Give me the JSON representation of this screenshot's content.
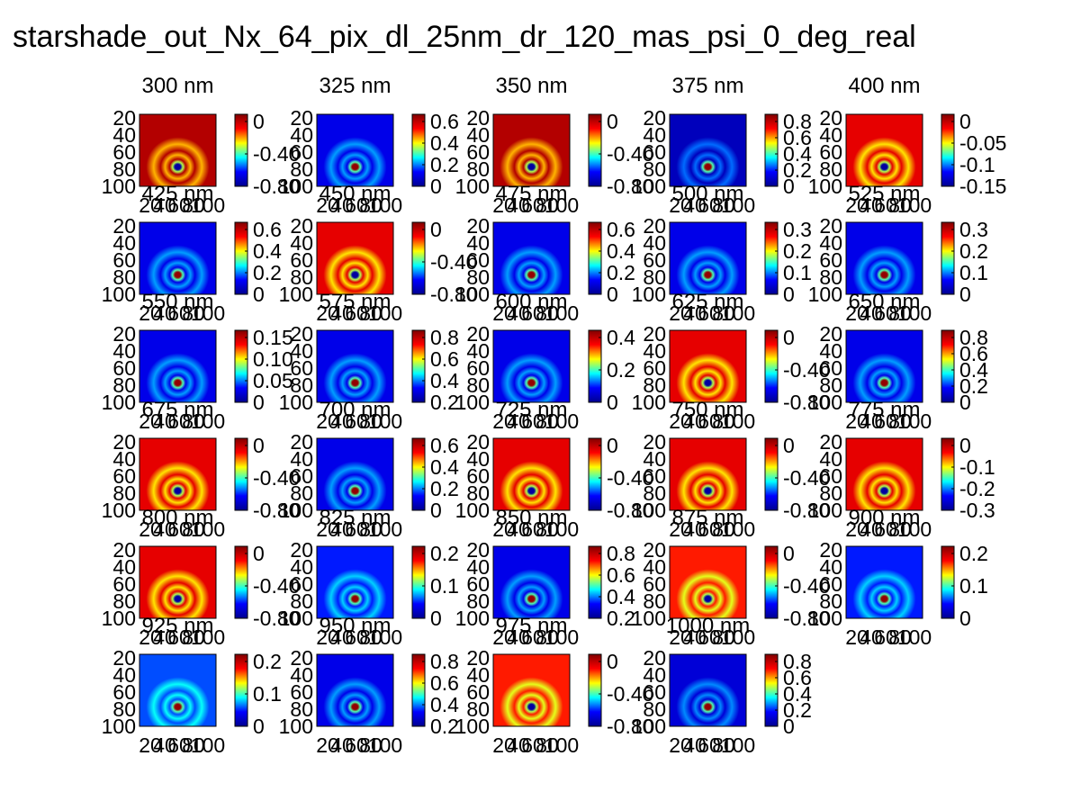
{
  "figure": {
    "title": "starshade_out_Nx_64_pix_dl_25nm_dr_120_mas_psi_0_deg_real"
  },
  "chart_data": {
    "type": "heatmap",
    "title": "starshade_out_Nx_64_pix_dl_25nm_dr_120_mas_psi_0_deg_real",
    "grid": false,
    "colormap": "jet",
    "colors": [
      "#00008f",
      "#0000ff",
      "#00ffff",
      "#ffff00",
      "#ff0000",
      "#800000"
    ],
    "y_ticks": [
      "20",
      "40",
      "60",
      "80",
      "100"
    ],
    "x_ticks": [
      "20",
      "40",
      "60",
      "80",
      "100"
    ],
    "panels": [
      {
        "label": "300 nm",
        "cbar_ticks": [
          "0",
          "-0.40",
          "-0.80"
        ],
        "background_level": 0.95
      },
      {
        "label": "325 nm",
        "cbar_ticks": [
          "0.6",
          "0.4",
          "0.2",
          "0"
        ],
        "background_level": 0.1
      },
      {
        "label": "350 nm",
        "cbar_ticks": [
          "0",
          "-0.40",
          "-0.80"
        ],
        "background_level": 0.95
      },
      {
        "label": "375 nm",
        "cbar_ticks": [
          "0.8",
          "0.6",
          "0.4",
          "0.2",
          "0"
        ],
        "background_level": 0.05
      },
      {
        "label": "400 nm",
        "cbar_ticks": [
          "0",
          "-0.05",
          "-0.1",
          "-0.15"
        ],
        "background_level": 0.9
      },
      {
        "label": "425 nm",
        "cbar_ticks": [
          "0.6",
          "0.4",
          "0.2",
          "0"
        ],
        "background_level": 0.1
      },
      {
        "label": "450 nm",
        "cbar_ticks": [
          "0",
          "-0.40",
          "-0.80"
        ],
        "background_level": 0.9
      },
      {
        "label": "475 nm",
        "cbar_ticks": [
          "0.6",
          "0.4",
          "0.2",
          "0"
        ],
        "background_level": 0.1
      },
      {
        "label": "500 nm",
        "cbar_ticks": [
          "0.3",
          "0.2",
          "0.1",
          "0"
        ],
        "background_level": 0.1
      },
      {
        "label": "525 nm",
        "cbar_ticks": [
          "0.3",
          "0.2",
          "0.1",
          "0"
        ],
        "background_level": 0.1
      },
      {
        "label": "550 nm",
        "cbar_ticks": [
          "0.15",
          "0.10",
          "0.05",
          "0"
        ],
        "background_level": 0.1
      },
      {
        "label": "575 nm",
        "cbar_ticks": [
          "0.8",
          "0.6",
          "0.4",
          "0.2"
        ],
        "background_level": 0.1
      },
      {
        "label": "600 nm",
        "cbar_ticks": [
          "0.4",
          "0.2",
          "0"
        ],
        "background_level": 0.1
      },
      {
        "label": "625 nm",
        "cbar_ticks": [
          "0",
          "-0.40",
          "-0.80"
        ],
        "background_level": 0.9
      },
      {
        "label": "650 nm",
        "cbar_ticks": [
          "0.8",
          "0.6",
          "0.4",
          "0.2",
          "0"
        ],
        "background_level": 0.1
      },
      {
        "label": "675 nm",
        "cbar_ticks": [
          "0",
          "-0.40",
          "-0.80"
        ],
        "background_level": 0.9
      },
      {
        "label": "700 nm",
        "cbar_ticks": [
          "0.6",
          "0.4",
          "0.2",
          "0"
        ],
        "background_level": 0.1
      },
      {
        "label": "725 nm",
        "cbar_ticks": [
          "0",
          "-0.40",
          "-0.80"
        ],
        "background_level": 0.9
      },
      {
        "label": "750 nm",
        "cbar_ticks": [
          "0",
          "-0.40",
          "-0.80"
        ],
        "background_level": 0.9
      },
      {
        "label": "775 nm",
        "cbar_ticks": [
          "0",
          "-0.1",
          "-0.2",
          "-0.3"
        ],
        "background_level": 0.9
      },
      {
        "label": "800 nm",
        "cbar_ticks": [
          "0",
          "-0.40",
          "-0.80"
        ],
        "background_level": 0.9
      },
      {
        "label": "825 nm",
        "cbar_ticks": [
          "0.2",
          "0.1",
          "0"
        ],
        "background_level": 0.15
      },
      {
        "label": "850 nm",
        "cbar_ticks": [
          "0.8",
          "0.6",
          "0.4",
          "0.2"
        ],
        "background_level": 0.1
      },
      {
        "label": "875 nm",
        "cbar_ticks": [
          "0",
          "-0.40",
          "-0.80"
        ],
        "background_level": 0.85
      },
      {
        "label": "900 nm",
        "cbar_ticks": [
          "0.2",
          "0.1",
          "0"
        ],
        "background_level": 0.15
      },
      {
        "label": "925 nm",
        "cbar_ticks": [
          "0.2",
          "0.1",
          "0"
        ],
        "background_level": 0.2
      },
      {
        "label": "950 nm",
        "cbar_ticks": [
          "0.8",
          "0.6",
          "0.4",
          "0.2"
        ],
        "background_level": 0.1
      },
      {
        "label": "975 nm",
        "cbar_ticks": [
          "0",
          "-0.40",
          "-0.80"
        ],
        "background_level": 0.85
      },
      {
        "label": "1000 nm",
        "cbar_ticks": [
          "0.8",
          "0.6",
          "0.4",
          "0.2",
          "0"
        ],
        "background_level": 0.08
      }
    ]
  }
}
